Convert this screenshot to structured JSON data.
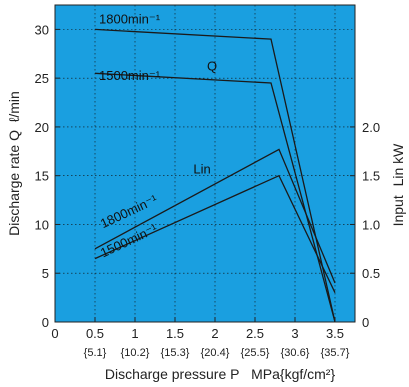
{
  "chart_data": {
    "type": "line",
    "plot_background": "#1a9fe0",
    "line_color": "#1a1a1a",
    "grid": true,
    "x_axis": {
      "label": "Discharge pressure P",
      "unit": "MPa{kgf/cm²}",
      "range": [
        0,
        3.75
      ],
      "ticks": [
        0,
        0.5,
        1,
        1.5,
        2,
        2.5,
        3,
        3.5
      ],
      "tick_labels": [
        "0",
        "0.5",
        "1",
        "1.5",
        "2",
        "2.5",
        "3",
        "3.5"
      ],
      "secondary_tick_labels": [
        "{5.1}",
        "{10.2}",
        "{15.3}",
        "{20.4}",
        "{25.5}",
        "{30.6}",
        "{35.7}"
      ]
    },
    "y_axis_left": {
      "label": "Discharge rate Q",
      "unit": "ℓ/min",
      "range": [
        0,
        32.5
      ],
      "ticks": [
        0,
        5,
        10,
        15,
        20,
        25,
        30
      ],
      "tick_labels": [
        "0",
        "5",
        "10",
        "15",
        "20",
        "25",
        "30"
      ]
    },
    "y_axis_right": {
      "label": "Input",
      "unit": "Lin kW",
      "ticks": [
        0,
        0.5,
        1.0,
        1.5,
        2.0
      ],
      "tick_labels": [
        "0",
        "0.5",
        "1.0",
        "1.5",
        "2.0"
      ]
    },
    "curve_labels": {
      "q": "Q",
      "lin": "Lin",
      "q_1800": "1800min⁻¹",
      "q_1500": "1500min⁻¹",
      "lin_1800": "1800min⁻¹",
      "lin_1500": "1500min⁻¹"
    },
    "series": [
      {
        "group": "Q",
        "x": [
          0.5,
          2.7,
          3.5
        ],
        "y": [
          30,
          29,
          0
        ]
      },
      {
        "group": "Q",
        "x": [
          0.5,
          2.7,
          3.5
        ],
        "y": [
          25.5,
          24.5,
          0
        ]
      },
      {
        "group": "Lin",
        "x": [
          0.5,
          2.8,
          3.5
        ],
        "y": [
          7.5,
          17.7,
          4
        ]
      },
      {
        "group": "Lin",
        "x": [
          0.5,
          2.8,
          3.5
        ],
        "y": [
          6.5,
          15,
          3
        ]
      }
    ]
  }
}
